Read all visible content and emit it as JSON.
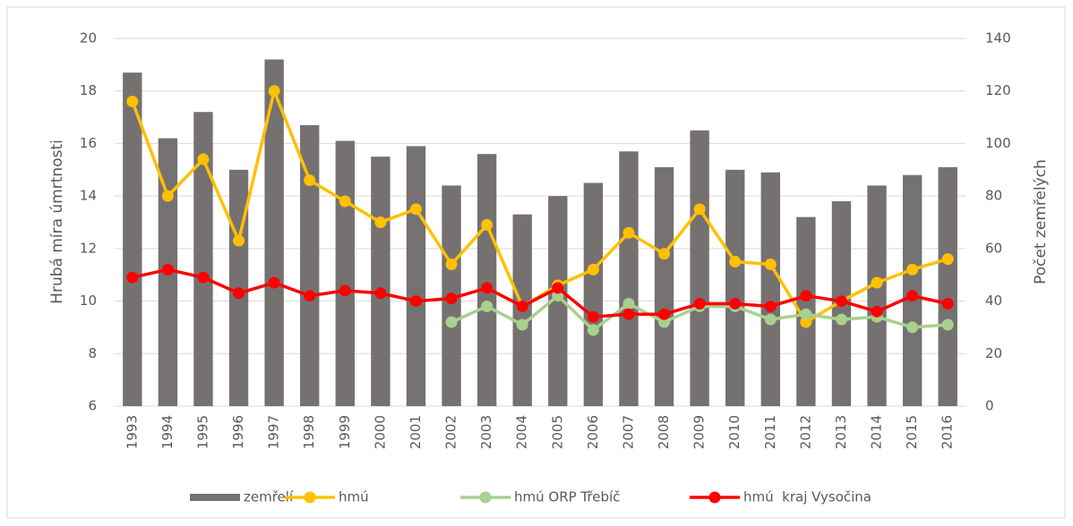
{
  "chart_data": {
    "type": "bar-line",
    "categories": [
      "1993",
      "1994",
      "1995",
      "1996",
      "1997",
      "1998",
      "1999",
      "2000",
      "2001",
      "2002",
      "2003",
      "2004",
      "2005",
      "2006",
      "2007",
      "2008",
      "2009",
      "2010",
      "2011",
      "2012",
      "2013",
      "2014",
      "2015",
      "2016"
    ],
    "series": [
      {
        "name": "zemřelí",
        "type": "bar",
        "axis": "y2",
        "color": "#767171",
        "values": [
          127,
          102,
          112,
          90,
          132,
          107,
          101,
          95,
          99,
          84,
          96,
          73,
          80,
          85,
          97,
          91,
          105,
          90,
          89,
          72,
          78,
          84,
          88,
          91
        ]
      },
      {
        "name": "hmú",
        "type": "line",
        "color": "#ffc000",
        "values": [
          17.6,
          14.0,
          15.4,
          12.3,
          18.0,
          14.6,
          13.8,
          13.0,
          13.5,
          11.4,
          12.9,
          9.8,
          10.6,
          11.2,
          12.6,
          11.8,
          13.5,
          11.5,
          11.4,
          9.2,
          10.0,
          10.7,
          11.2,
          11.6
        ]
      },
      {
        "name": "hmú ORP Třebíč",
        "type": "line",
        "color": "#a9d18e",
        "values": [
          null,
          null,
          null,
          null,
          null,
          null,
          null,
          null,
          null,
          9.2,
          9.8,
          9.1,
          10.2,
          8.9,
          9.9,
          9.2,
          9.8,
          9.8,
          9.3,
          9.5,
          9.3,
          9.4,
          9.0,
          9.1
        ]
      },
      {
        "name": "hmú  kraj Vysočina",
        "type": "line",
        "color": "#ff0000",
        "values": [
          10.9,
          11.2,
          10.9,
          10.3,
          10.7,
          10.2,
          10.4,
          10.3,
          10.0,
          10.1,
          10.5,
          9.8,
          10.5,
          9.4,
          9.5,
          9.5,
          9.9,
          9.9,
          9.8,
          10.2,
          10.0,
          9.6,
          10.2,
          9.9
        ]
      }
    ],
    "ylabel": "Hrubá míra úmrtnosti",
    "y2label": "Počet zemřelých",
    "ylim": [
      6,
      20
    ],
    "yticks": [
      6,
      8,
      10,
      12,
      14,
      16,
      18,
      20
    ],
    "y2lim": [
      0,
      140
    ],
    "y2ticks": [
      0,
      20,
      40,
      60,
      80,
      100,
      120,
      140
    ],
    "grid": true,
    "legend": "bottom"
  }
}
